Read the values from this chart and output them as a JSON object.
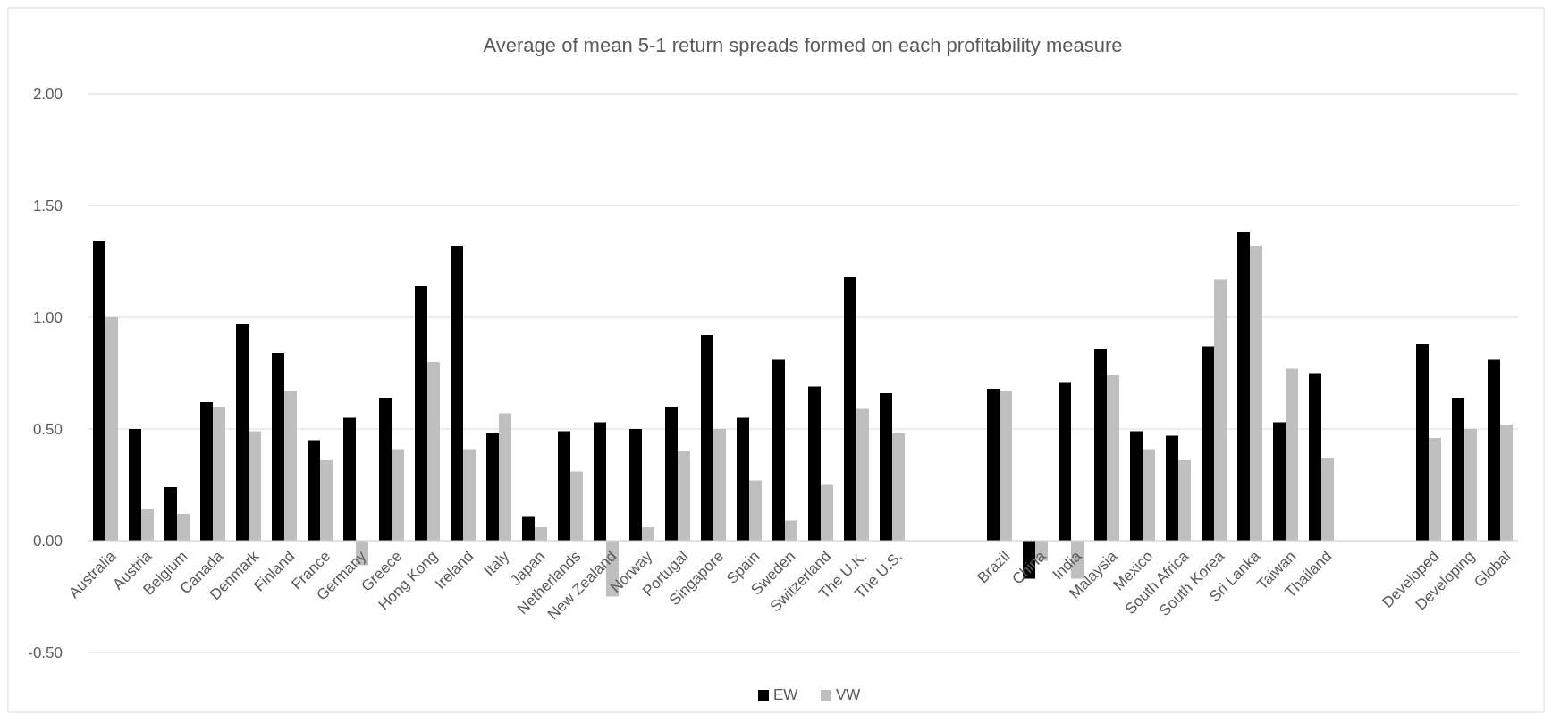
{
  "chart_data": {
    "type": "bar",
    "title": "Average of mean 5-1 return spreads formed on each profitability measure",
    "categories": [
      "Australia",
      "Austria",
      "Belgium",
      "Canada",
      "Denmark",
      "Finland",
      "France",
      "Germany",
      "Greece",
      "Hong Kong",
      "Ireland",
      "Italy",
      "Japan",
      "Netherlands",
      "New Zealand",
      "Norway",
      "Portugal",
      "Singapore",
      "Spain",
      "Sweden",
      "Switzerland",
      "The U.K.",
      "The U.S.",
      null,
      null,
      "Brazil",
      "China",
      "India",
      "Malaysia",
      "Mexico",
      "South Africa",
      "South Korea",
      "Sri Lanka",
      "Taiwan",
      "Thailand",
      null,
      null,
      "Developed",
      "Developing",
      "Global"
    ],
    "series": [
      {
        "name": "EW",
        "color": "#000000",
        "values": [
          1.34,
          0.5,
          0.24,
          0.62,
          0.97,
          0.84,
          0.45,
          0.55,
          0.64,
          1.14,
          1.32,
          0.48,
          0.11,
          0.49,
          0.53,
          0.5,
          0.6,
          0.92,
          0.55,
          0.81,
          0.69,
          1.18,
          0.66,
          null,
          null,
          0.68,
          -0.17,
          0.71,
          0.86,
          0.49,
          0.47,
          0.87,
          1.38,
          0.53,
          0.75,
          null,
          null,
          0.88,
          0.64,
          0.81
        ]
      },
      {
        "name": "VW",
        "color": "#bfbfbf",
        "values": [
          1.0,
          0.14,
          0.12,
          0.6,
          0.49,
          0.67,
          0.36,
          -0.11,
          0.41,
          0.8,
          0.41,
          0.57,
          0.06,
          0.31,
          -0.25,
          0.06,
          0.4,
          0.5,
          0.27,
          0.09,
          0.25,
          0.59,
          0.48,
          null,
          null,
          0.67,
          -0.09,
          -0.17,
          0.74,
          0.41,
          0.36,
          1.17,
          1.32,
          0.77,
          0.37,
          null,
          null,
          0.46,
          0.5,
          0.52
        ]
      }
    ],
    "ylim": [
      -0.5,
      2
    ],
    "yticks": [
      {
        "value": -0.5,
        "label": "-0.50"
      },
      {
        "value": 0,
        "label": "0.00"
      },
      {
        "value": 0.5,
        "label": "0.50"
      },
      {
        "value": 1,
        "label": "1.00"
      },
      {
        "value": 1.5,
        "label": "1.50"
      },
      {
        "value": 2,
        "label": "2.00"
      }
    ],
    "grid": "y",
    "legend": "bottom"
  }
}
